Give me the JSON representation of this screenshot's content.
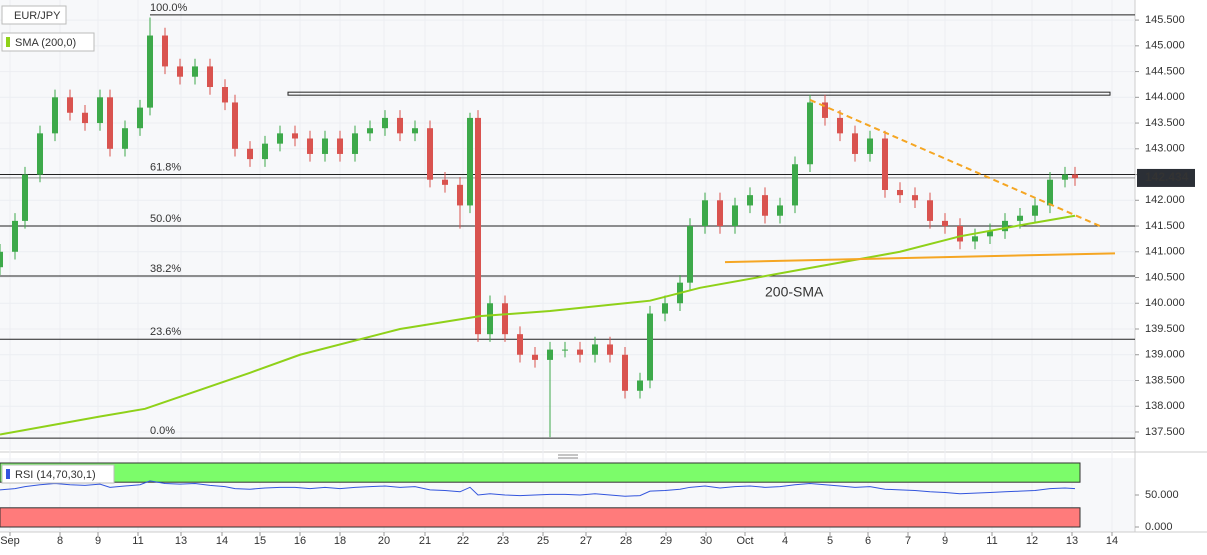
{
  "chart_data": {
    "type": "candlestick",
    "symbol": "EUR/JPY",
    "xlim": [
      0,
      1135
    ],
    "xticks": [
      {
        "value": 10,
        "label": "Sep"
      },
      {
        "value": 60,
        "label": "8"
      },
      {
        "value": 98,
        "label": "9"
      },
      {
        "value": 138,
        "label": "11"
      },
      {
        "value": 181,
        "label": "13"
      },
      {
        "value": 222,
        "label": "14"
      },
      {
        "value": 260,
        "label": "15"
      },
      {
        "value": 300,
        "label": "16"
      },
      {
        "value": 340,
        "label": "18"
      },
      {
        "value": 384,
        "label": "20"
      },
      {
        "value": 425,
        "label": "21"
      },
      {
        "value": 463,
        "label": "22"
      },
      {
        "value": 503,
        "label": "23"
      },
      {
        "value": 543,
        "label": "25"
      },
      {
        "value": 586,
        "label": "27"
      },
      {
        "value": 626,
        "label": "28"
      },
      {
        "value": 666,
        "label": "29"
      },
      {
        "value": 706,
        "label": "30"
      },
      {
        "value": 745,
        "label": "Oct"
      },
      {
        "value": 785,
        "label": "4"
      },
      {
        "value": 830,
        "label": "5"
      },
      {
        "value": 868,
        "label": "6"
      },
      {
        "value": 908,
        "label": "7"
      },
      {
        "value": 945,
        "label": "9"
      },
      {
        "value": 992,
        "label": "11"
      },
      {
        "value": 1032,
        "label": "12"
      },
      {
        "value": 1072,
        "label": "13"
      },
      {
        "value": 1112,
        "label": "14"
      }
    ],
    "ylim": [
      137.15,
      145.89
    ],
    "yticks": [
      {
        "value": 137.5,
        "label": "137.500"
      },
      {
        "value": 138,
        "label": "138.000"
      },
      {
        "value": 138.5,
        "label": "138.500"
      },
      {
        "value": 139,
        "label": "139.000"
      },
      {
        "value": 139.5,
        "label": "139.500"
      },
      {
        "value": 140,
        "label": "140.000"
      },
      {
        "value": 140.5,
        "label": "140.500"
      },
      {
        "value": 141,
        "label": "141.000"
      },
      {
        "value": 141.5,
        "label": "141.500"
      },
      {
        "value": 142,
        "label": "142.000"
      },
      {
        "value": 142.5,
        "label": "142.500"
      },
      {
        "value": 143,
        "label": "143.000"
      },
      {
        "value": 143.5,
        "label": "143.500"
      },
      {
        "value": 144,
        "label": "144.000"
      },
      {
        "value": 144.5,
        "label": "144.500"
      },
      {
        "value": 145,
        "label": "145.000"
      },
      {
        "value": 145.5,
        "label": "145.500"
      }
    ],
    "up_color": "#3da94a",
    "down_color": "#d9534f",
    "candles": {
      "x": [
        0,
        15,
        25,
        40,
        55,
        70,
        85,
        100,
        110,
        125,
        140,
        150,
        165,
        180,
        195,
        210,
        225,
        235,
        250,
        265,
        280,
        295,
        310,
        325,
        340,
        355,
        370,
        385,
        400,
        415,
        430,
        445,
        460,
        470,
        478,
        490,
        505,
        520,
        535,
        550,
        565,
        580,
        595,
        610,
        625,
        640,
        650,
        665,
        680,
        690,
        705,
        720,
        735,
        750,
        765,
        780,
        795,
        810,
        825,
        840,
        855,
        870,
        885,
        900,
        915,
        930,
        945,
        960,
        975,
        990,
        1005,
        1020,
        1035,
        1050,
        1065,
        1075
      ],
      "open": [
        140.7,
        141.0,
        141.6,
        142.5,
        143.3,
        144.0,
        143.7,
        143.5,
        144.0,
        143.0,
        143.4,
        143.8,
        145.2,
        144.6,
        144.4,
        144.6,
        144.2,
        143.9,
        143.0,
        142.8,
        143.1,
        143.3,
        143.2,
        142.9,
        143.2,
        142.9,
        143.3,
        143.4,
        143.6,
        143.3,
        143.4,
        142.4,
        142.3,
        141.9,
        143.6,
        139.4,
        140.0,
        139.4,
        139.0,
        138.9,
        139.1,
        139.1,
        139.0,
        139.2,
        139.0,
        138.3,
        138.5,
        139.8,
        140.0,
        140.4,
        141.5,
        142.0,
        141.5,
        141.9,
        142.1,
        141.7,
        141.9,
        142.7,
        143.9,
        143.6,
        143.3,
        142.9,
        143.2,
        142.2,
        142.1,
        142.0,
        141.6,
        141.5,
        141.2,
        141.3,
        141.4,
        141.6,
        141.7,
        141.9,
        142.4,
        142.5
      ],
      "high": [
        141.15,
        141.75,
        142.65,
        143.45,
        144.15,
        144.15,
        143.85,
        144.15,
        144.15,
        143.55,
        143.95,
        145.55,
        145.35,
        144.75,
        144.75,
        144.75,
        144.35,
        144.05,
        143.15,
        143.25,
        143.45,
        143.45,
        143.35,
        143.35,
        143.35,
        143.45,
        143.55,
        143.75,
        143.75,
        143.55,
        143.55,
        142.55,
        142.45,
        143.7,
        143.75,
        140.15,
        140.15,
        139.55,
        139.15,
        139.25,
        139.25,
        139.25,
        139.35,
        139.35,
        139.15,
        138.65,
        139.95,
        140.15,
        140.55,
        141.65,
        142.15,
        142.15,
        142.05,
        142.25,
        142.25,
        142.05,
        142.85,
        144.05,
        144.05,
        143.75,
        143.45,
        143.35,
        143.35,
        142.35,
        142.25,
        142.15,
        141.75,
        141.65,
        141.45,
        141.55,
        141.75,
        141.85,
        142.05,
        142.55,
        142.65,
        142.65
      ],
      "low": [
        140.55,
        140.85,
        141.45,
        142.35,
        143.15,
        143.55,
        143.35,
        143.35,
        142.85,
        142.85,
        143.25,
        143.65,
        144.45,
        144.25,
        144.25,
        144.05,
        143.75,
        142.85,
        142.65,
        142.65,
        142.95,
        143.05,
        142.75,
        142.75,
        142.75,
        142.75,
        143.15,
        143.25,
        143.15,
        143.15,
        142.25,
        142.15,
        141.45,
        141.75,
        139.25,
        139.25,
        139.25,
        138.85,
        138.75,
        137.4,
        138.95,
        138.85,
        138.85,
        138.85,
        138.15,
        138.15,
        138.35,
        139.65,
        139.85,
        140.25,
        141.35,
        141.35,
        141.35,
        141.75,
        141.55,
        141.55,
        141.75,
        142.55,
        143.45,
        143.15,
        142.75,
        142.75,
        142.05,
        141.95,
        141.85,
        141.45,
        141.35,
        141.05,
        141.05,
        141.15,
        141.25,
        141.45,
        141.55,
        141.75,
        142.25,
        142.28
      ],
      "close": [
        141.0,
        141.6,
        142.5,
        143.3,
        144.0,
        143.7,
        143.5,
        144.0,
        143.0,
        143.4,
        143.8,
        145.2,
        144.6,
        144.4,
        144.6,
        144.2,
        143.9,
        143.0,
        142.8,
        143.1,
        143.3,
        143.2,
        142.9,
        143.2,
        142.9,
        143.3,
        143.4,
        143.6,
        143.3,
        143.4,
        142.4,
        142.3,
        141.9,
        143.6,
        139.4,
        140.0,
        139.4,
        139.0,
        138.9,
        139.1,
        139.1,
        139.0,
        139.2,
        139.0,
        138.3,
        138.5,
        139.8,
        140.0,
        140.4,
        141.5,
        142.0,
        141.5,
        141.9,
        142.1,
        141.7,
        141.9,
        142.7,
        143.9,
        143.6,
        143.3,
        142.9,
        143.2,
        142.2,
        142.1,
        142.0,
        141.6,
        141.5,
        141.2,
        141.3,
        141.4,
        141.6,
        141.7,
        141.9,
        142.4,
        142.5,
        142.43
      ]
    },
    "sma": {
      "name": "SMA (200,0)",
      "label": "200-SMA",
      "color": "#8fd119",
      "x": [
        0,
        100,
        145,
        250,
        300,
        400,
        480,
        550,
        650,
        700,
        800,
        900,
        960,
        1030,
        1075
      ],
      "values": [
        137.45,
        137.8,
        137.95,
        138.65,
        139.0,
        139.5,
        139.75,
        139.85,
        140.05,
        140.3,
        140.65,
        141.0,
        141.3,
        141.55,
        141.7
      ]
    },
    "fib_levels": [
      {
        "price": 145.6,
        "label": "100.0%"
      },
      {
        "price": 142.5,
        "label": "61.8%"
      },
      {
        "price": 141.5,
        "label": "50.0%"
      },
      {
        "price": 140.53,
        "label": "38.2%"
      },
      {
        "price": 139.3,
        "label": "23.6%"
      },
      {
        "price": 137.38,
        "label": "0.0%"
      }
    ],
    "resistance_zone": {
      "x": [
        288,
        1110
      ],
      "top": 144.1,
      "bottom": 144.05
    },
    "trendlines": [
      {
        "x": [
          810,
          1100
        ],
        "y": [
          143.95,
          141.5
        ],
        "dashed": true,
        "color": "#f5a623"
      },
      {
        "x": [
          725,
          1115
        ],
        "y": [
          140.8,
          140.97
        ],
        "dashed": false,
        "color": "#f5a623"
      }
    ],
    "last_price": 142.434,
    "rsi": {
      "name": "RSI (14,70,30,1)",
      "color": "#3355dd",
      "ylim": [
        -7.8,
        107.8
      ],
      "yticks": [
        {
          "value": 50,
          "label": "50.000"
        },
        {
          "value": 0,
          "label": "0.000"
        }
      ],
      "overbought": [
        70,
        100
      ],
      "oversold": [
        0,
        30
      ],
      "values": [
        58,
        60,
        63,
        66,
        68,
        66,
        65,
        67,
        62,
        64,
        66,
        72,
        68,
        67,
        68,
        65,
        63,
        60,
        59,
        61,
        62,
        62,
        60,
        62,
        60,
        62,
        63,
        64,
        62,
        63,
        58,
        57,
        55,
        62,
        50,
        52,
        50,
        49,
        50,
        51,
        51,
        50,
        52,
        50,
        48,
        49,
        56,
        57,
        59,
        62,
        64,
        61,
        63,
        64,
        62,
        63,
        66,
        68,
        66,
        64,
        62,
        63,
        59,
        58,
        57,
        55,
        54,
        52,
        53,
        54,
        55,
        56,
        57,
        60,
        61,
        60
      ]
    }
  }
}
